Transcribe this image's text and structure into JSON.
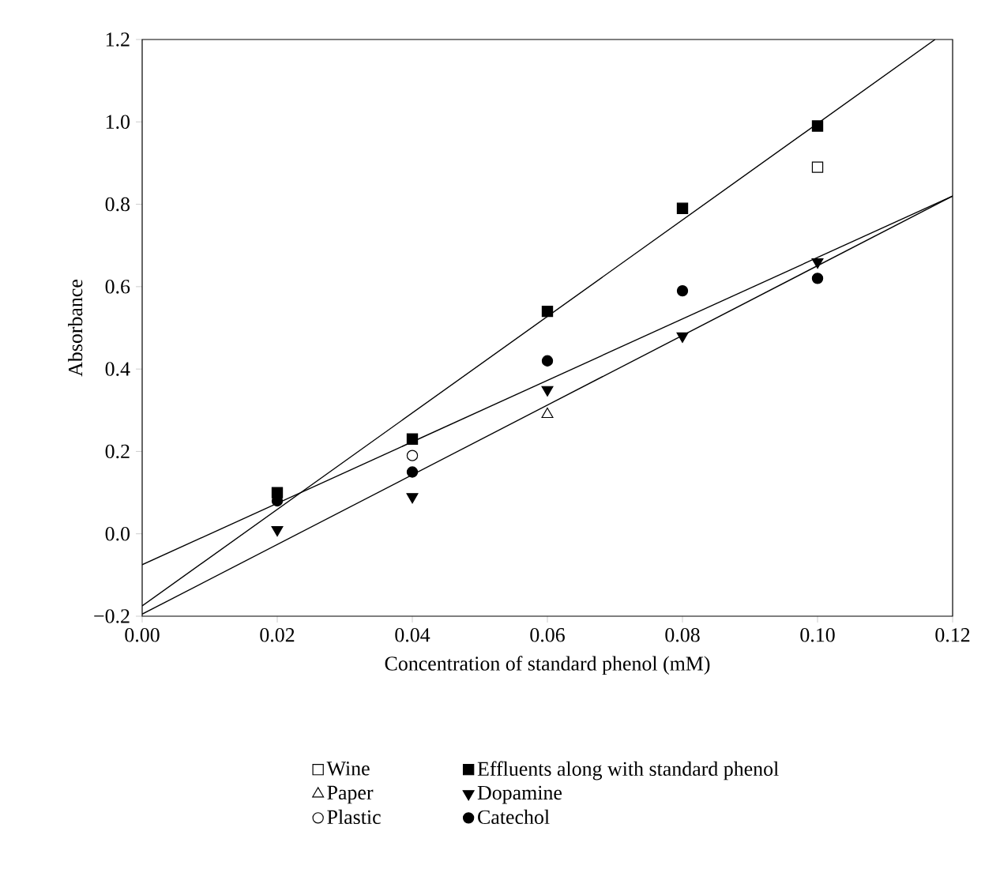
{
  "chart_data": {
    "type": "scatter",
    "xlabel": "Concentration of standard phenol (mM)",
    "ylabel": "Absorbance",
    "xlim": [
      0,
      0.12
    ],
    "ylim": [
      -0.2,
      1.2
    ],
    "xticks": [
      {
        "value": 0,
        "label": "0.00"
      },
      0.02,
      0.04,
      0.06,
      0.08,
      {
        "value": 0.1,
        "label": "0.10"
      },
      0.12
    ],
    "yticks": [
      {
        "value": -0.2,
        "label": "−0.2"
      },
      {
        "value": 0,
        "label": "0.0"
      },
      0.2,
      0.4,
      0.6,
      0.8,
      {
        "value": 1,
        "label": "1.0"
      },
      1.2
    ],
    "legend": "bottom",
    "grid": false,
    "series": [
      {
        "name": "Wine",
        "color": "#ffffff",
        "marker": "square",
        "x": [
          0.1
        ],
        "values": [
          0.89
        ]
      },
      {
        "name": "Paper",
        "color": "#ffffff",
        "marker": "triangle",
        "x": [
          0.06
        ],
        "values": [
          0.29
        ]
      },
      {
        "name": "Plastic",
        "color": "#ffffff",
        "marker": "circle",
        "x": [
          0.04
        ],
        "values": [
          0.19
        ]
      },
      {
        "name": "Effluents along with standard phenol",
        "color": "#000000",
        "marker": "square",
        "x": [
          0.02,
          0.04,
          0.06,
          0.08,
          0.1
        ],
        "values": [
          0.1,
          0.23,
          0.54,
          0.79,
          0.99
        ]
      },
      {
        "name": "Dopamine",
        "color": "#000000",
        "marker": "triangle",
        "x": [
          0.02,
          0.04,
          0.06,
          0.08,
          0.1
        ],
        "values": [
          0.01,
          0.09,
          0.35,
          0.48,
          0.66
        ]
      },
      {
        "name": "Catechol",
        "color": "#000000",
        "marker": "circle",
        "x": [
          0.02,
          0.04,
          0.06,
          0.08,
          0.1
        ],
        "values": [
          0.08,
          0.15,
          0.42,
          0.59,
          0.62
        ]
      },
      {
        "type": "line",
        "color": "#000000",
        "x": [
          0,
          0.1174
        ],
        "values": [
          -0.175,
          1.2
        ]
      },
      {
        "type": "line",
        "color": "#000000",
        "x": [
          0,
          0.12
        ],
        "values": [
          -0.075,
          0.82
        ]
      },
      {
        "type": "line",
        "color": "#000000",
        "x": [
          0,
          0.12
        ],
        "values": [
          -0.195,
          0.82
        ]
      }
    ]
  }
}
